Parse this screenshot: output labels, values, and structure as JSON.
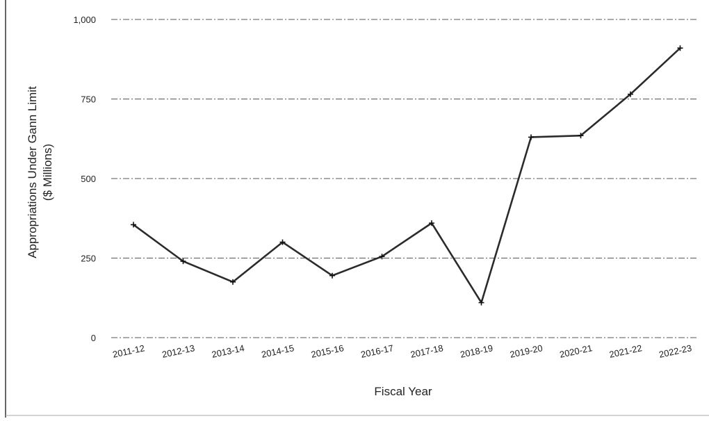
{
  "chart_data": {
    "type": "line",
    "title": "",
    "xlabel": "Fiscal Year",
    "ylabel_line1": "Appropriations Under Gann Limit",
    "ylabel_line2": "($ Millions)",
    "categories": [
      "2011-12",
      "2012-13",
      "2013-14",
      "2014-15",
      "2015-16",
      "2016-17",
      "2017-18",
      "2018-19",
      "2019-20",
      "2020-21",
      "2021-22",
      "2022-23"
    ],
    "values": [
      355,
      240,
      175,
      300,
      195,
      255,
      360,
      110,
      630,
      635,
      765,
      910
    ],
    "ylim": [
      0,
      1000
    ],
    "yticks": [
      0,
      250,
      500,
      750,
      1000
    ],
    "ytick_labels": [
      "0",
      "250",
      "500",
      "750",
      "1,000"
    ],
    "grid": true,
    "line_color": "#2b2b2b",
    "gridline_color": "#555555"
  }
}
